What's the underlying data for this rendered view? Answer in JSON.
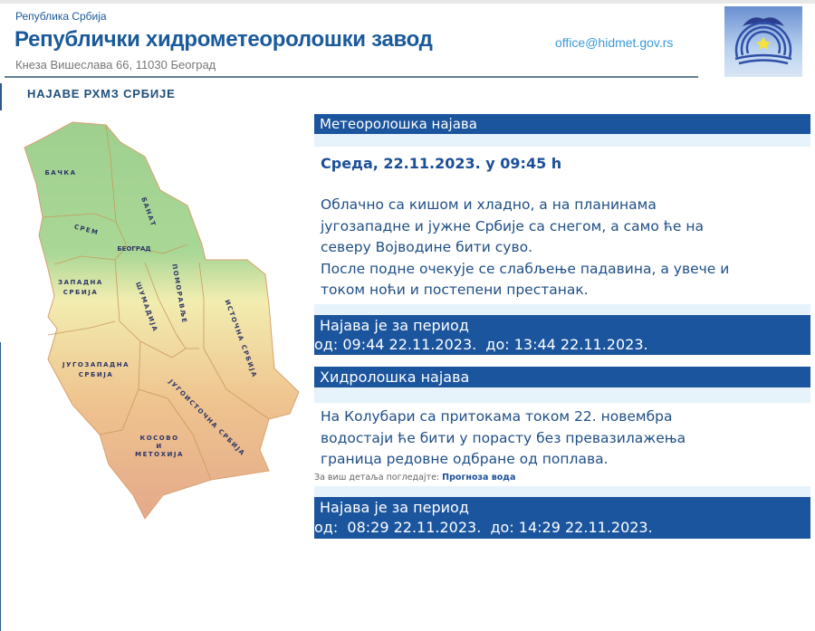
{
  "header": {
    "country": "Република Србија",
    "title": "Републички хидрометеоролошки завод",
    "address": "Кнеза Вишеслава 66, 11030 Београд",
    "email": "office@hidmet.gov.rs",
    "logo_text": "РХМЗ СРБИЈЕ"
  },
  "section_title": "НАЈАВЕ РХМЗ СРБИЈЕ",
  "map": {
    "regions": [
      "БАЧКА",
      "БАНАТ",
      "СРЕМ",
      "БЕОГРАД",
      "ЗАПАДНА",
      "СРБИЈА",
      "ШУМАДИЈА",
      "ПОМОРАВЉЕ",
      "ИСТОЧНА СРБИЈА",
      "ЈУГОЗАПАДНА",
      "СРБИЈА",
      "ЈУГОИСТОЧНА СРБИЈА",
      "КОСОВО",
      "И",
      "МЕТОХИЈА"
    ]
  },
  "meteo": {
    "heading": "Метеоролошка најава",
    "date": "Среда, 22.11.2023. у 09:45 h",
    "lines": [
      "Облачно са кишом и хладно, а на планинама",
      "југозападне и јужне Србије са снегом, а само ће на",
      "северу Војводине бити суво.",
      "После подне очекује се слабљење падавина, а увече и",
      "током ноћи и постепени престанак."
    ],
    "period_title": "Најава је за период",
    "period": "од: 09:44 22.11.2023.  до: 13:44 22.11.2023."
  },
  "hydro": {
    "heading": "Хидролошка најава",
    "lines": [
      "На Колубари са притокама током 22. новембра",
      "водостаји ће бити у порасту без превазилажења",
      "граница редовне одбране од поплава."
    ],
    "more_label": "За виш детаља погледајте:",
    "more_link": "Прогноза вода",
    "period_title": "Најава је за период",
    "period": "од:  08:29 22.11.2023.  до: 14:29 22.11.2023."
  },
  "colors": {
    "accent": "#1b559e",
    "band": "#e6f3fa",
    "title": "#1a5a9a"
  }
}
